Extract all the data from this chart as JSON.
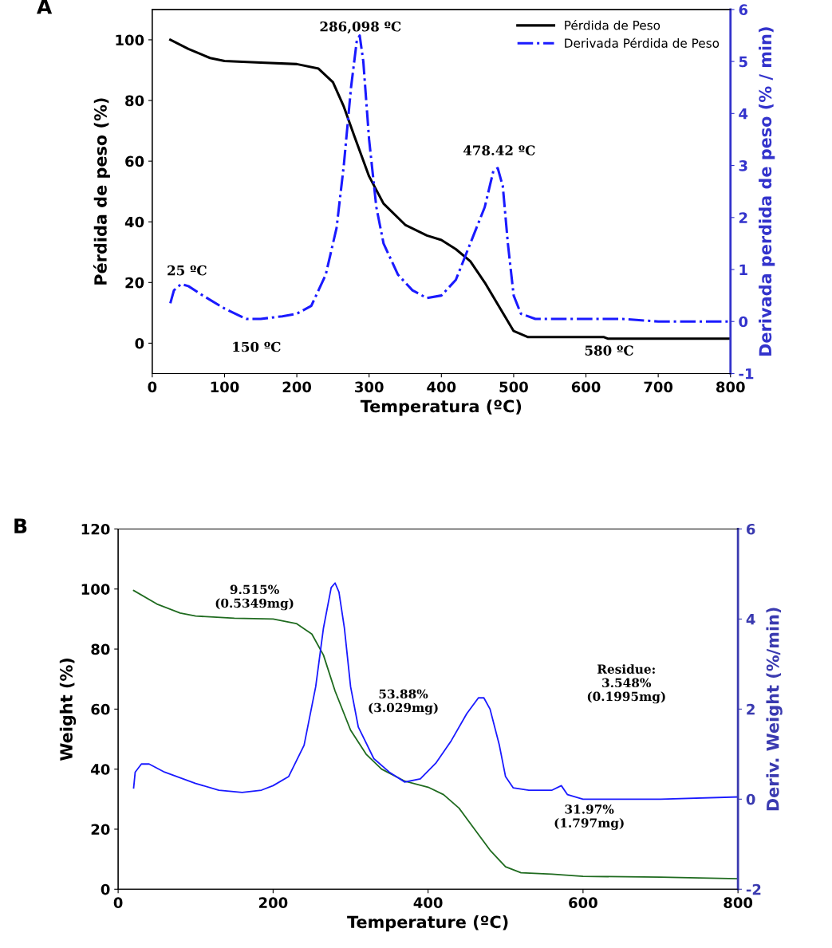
{
  "chart_data": [
    {
      "type": "line",
      "title": "A",
      "xlabel": "Temperatura (ºC)",
      "ylabel": "Pérdida de peso (%)",
      "y2label": "Derivada perdida de peso (% / min)",
      "xlim": [
        0,
        800
      ],
      "xticks": [
        0,
        100,
        200,
        300,
        400,
        500,
        600,
        700,
        800
      ],
      "ylim": [
        -10,
        110
      ],
      "yticks": [
        0,
        20,
        40,
        60,
        80,
        100
      ],
      "y2lim": [
        -1,
        6
      ],
      "y2ticks": [
        -1,
        0,
        1,
        2,
        3,
        4,
        5,
        6
      ],
      "grid": false,
      "legend": "top right",
      "series": [
        {
          "name": "Pérdida de Peso",
          "color": "#000000",
          "line_style": "solid",
          "x": [
            25,
            50,
            80,
            100,
            150,
            200,
            230,
            250,
            265,
            280,
            300,
            320,
            350,
            380,
            400,
            420,
            440,
            460,
            480,
            500,
            520,
            600,
            625,
            630,
            800
          ],
          "values": [
            100,
            97,
            94,
            93,
            92.5,
            92,
            90.5,
            86,
            78,
            68,
            55,
            46,
            39,
            35.5,
            34,
            31,
            27,
            20,
            12,
            4,
            2,
            2,
            2,
            1.5,
            1.5
          ]
        },
        {
          "name": "Derivada Pérdida de Peso",
          "color": "#1a1aff",
          "line_style": "dashed",
          "axis": "y2",
          "x": [
            25,
            30,
            40,
            50,
            70,
            100,
            130,
            150,
            180,
            200,
            220,
            240,
            255,
            265,
            275,
            283,
            287,
            292,
            300,
            310,
            320,
            340,
            360,
            380,
            400,
            420,
            440,
            460,
            472,
            478,
            485,
            492,
            500,
            510,
            530,
            600,
            650,
            700,
            800
          ],
          "values": [
            0.35,
            0.6,
            0.72,
            0.68,
            0.5,
            0.25,
            0.05,
            0.05,
            0.1,
            0.15,
            0.3,
            0.9,
            1.8,
            3,
            4.5,
            5.4,
            5.5,
            5,
            3.5,
            2.2,
            1.5,
            0.9,
            0.6,
            0.45,
            0.5,
            0.8,
            1.5,
            2.2,
            2.9,
            2.95,
            2.6,
            1.5,
            0.5,
            0.15,
            0.05,
            0.05,
            0.05,
            0,
            0
          ]
        }
      ],
      "annotations": [
        "286,098 ºC",
        "478.42 ºC",
        "25 ºC",
        "150 ºC",
        "580 ºC"
      ]
    },
    {
      "type": "line",
      "title": "B",
      "xlabel": "Temperature (ºC)",
      "ylabel": "Weight (%)",
      "y2label": "Deriv. Weight (%/min)",
      "xlim": [
        0,
        800
      ],
      "xticks": [
        0,
        200,
        400,
        600,
        800
      ],
      "ylim": [
        0,
        120
      ],
      "yticks": [
        0,
        20,
        40,
        60,
        80,
        100,
        120
      ],
      "y2lim": [
        -2,
        6
      ],
      "y2ticks": [
        -2,
        0,
        2,
        4,
        6
      ],
      "grid": false,
      "legend": false,
      "series": [
        {
          "color": "#1f6b1f",
          "line_style": "solid",
          "x": [
            20,
            50,
            80,
            100,
            150,
            200,
            230,
            250,
            265,
            280,
            300,
            320,
            340,
            370,
            400,
            420,
            440,
            460,
            480,
            500,
            520,
            560,
            600,
            700,
            800
          ],
          "values": [
            99.5,
            95,
            92,
            91,
            90.3,
            90,
            88.5,
            85,
            78,
            66,
            53,
            45,
            40,
            36,
            34,
            31.5,
            27,
            20,
            13,
            7.5,
            5.5,
            5,
            4.3,
            4,
            3.5
          ]
        },
        {
          "color": "#1a1aff",
          "line_style": "solid",
          "axis": "y2",
          "x": [
            20,
            22,
            30,
            40,
            60,
            100,
            130,
            160,
            185,
            200,
            220,
            240,
            255,
            265,
            275,
            280,
            285,
            292,
            300,
            310,
            330,
            350,
            370,
            390,
            410,
            430,
            450,
            465,
            472,
            480,
            492,
            500,
            510,
            530,
            560,
            572,
            580,
            600,
            700,
            800
          ],
          "values": [
            0.25,
            0.6,
            0.78,
            0.78,
            0.6,
            0.35,
            0.2,
            0.15,
            0.2,
            0.3,
            0.5,
            1.2,
            2.5,
            3.8,
            4.7,
            4.8,
            4.6,
            3.8,
            2.5,
            1.6,
            0.9,
            0.6,
            0.38,
            0.45,
            0.8,
            1.3,
            1.9,
            2.25,
            2.25,
            2,
            1.2,
            0.5,
            0.25,
            0.2,
            0.2,
            0.3,
            0.1,
            0,
            0,
            0.05
          ]
        }
      ],
      "annotations": [
        "9.515%\n(0.5349mg)",
        "53.88%\n(3.029mg)",
        "31.97%\n(1.797mg)",
        "Residue:\n3.548%\n(0.1995mg)"
      ]
    }
  ]
}
